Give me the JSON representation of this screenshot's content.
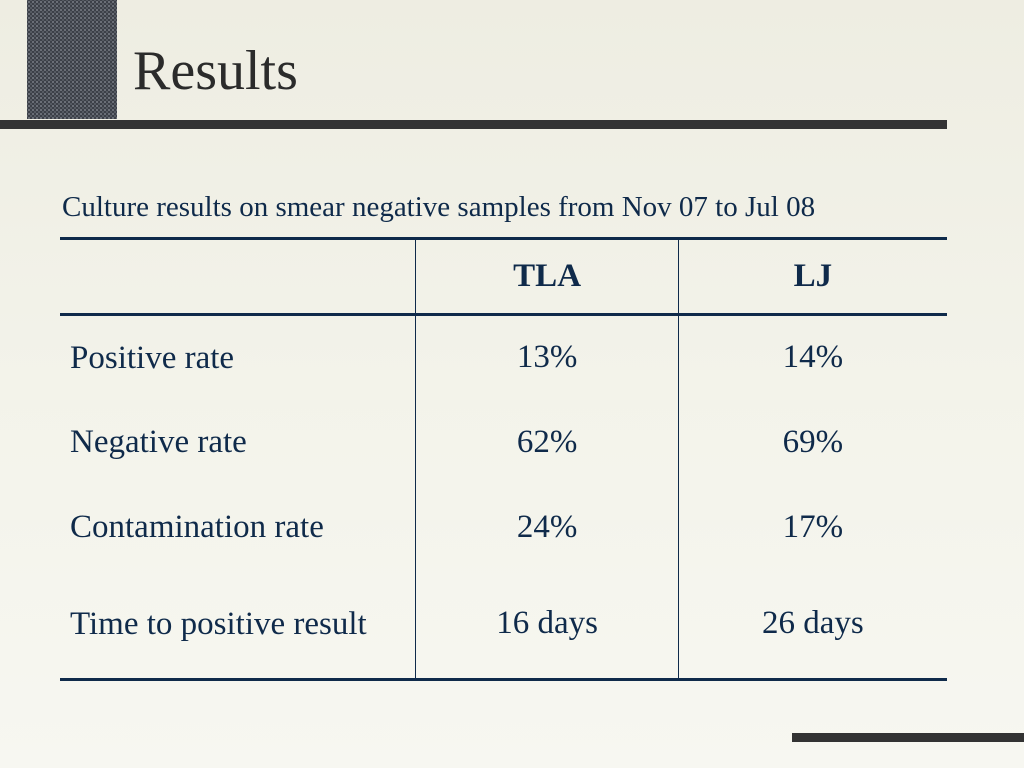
{
  "slide": {
    "title": "Results",
    "caption": "Culture results on smear negative samples from Nov 07 to Jul 08"
  },
  "table": {
    "columns": [
      "",
      "TLA",
      "LJ"
    ],
    "rows": [
      {
        "label": "Positive rate",
        "tla": "13%",
        "lj": "14%"
      },
      {
        "label": "Negative rate",
        "tla": "62%",
        "lj": "69%"
      },
      {
        "label": "Contamination rate",
        "tla": "24%",
        "lj": "17%"
      },
      {
        "label": "Time to positive result",
        "tla": "16 days",
        "lj": "26 days"
      }
    ]
  },
  "colors": {
    "text": "#0f2a4a",
    "title": "#2b2b2b",
    "rule": "#333333",
    "corner_block": "#3c4048"
  }
}
